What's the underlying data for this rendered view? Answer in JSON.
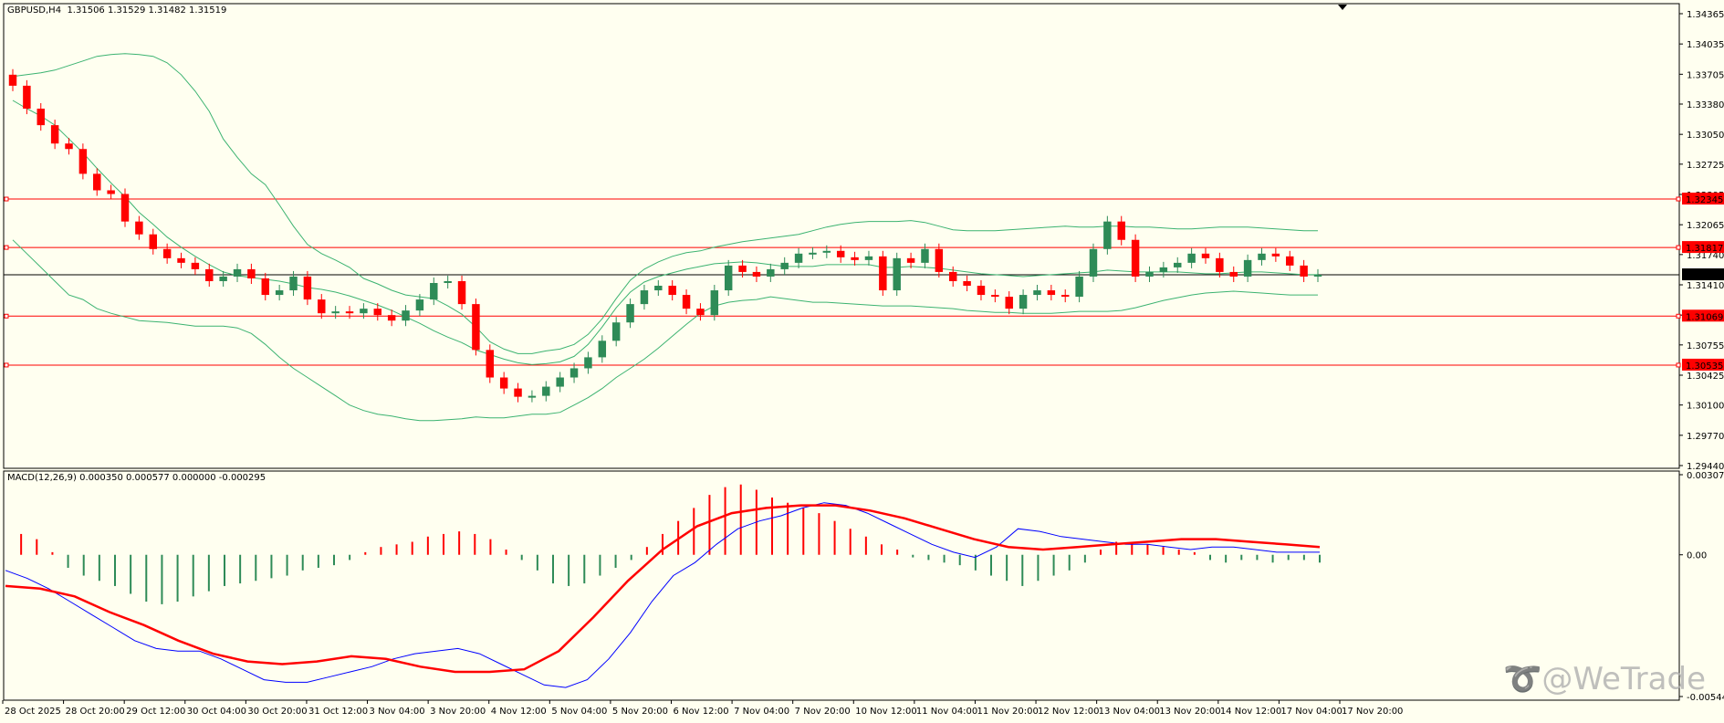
{
  "symbol_line": {
    "symbol": "GBPUSD,H4",
    "ohlc": "1.31506 1.31529 1.31482 1.31519"
  },
  "macd_line": "MACD(12,26,9) 0.000350 0.000577 0.000000 -0.000295",
  "watermark": "@WeTrade",
  "colors": {
    "background": "#fffff0",
    "bull": "#2e8b57",
    "bear": "#ff0000",
    "bands": "#3cb371",
    "level": "#ff0000",
    "macd_line": "#0000ff",
    "signal_line": "#ff0000"
  },
  "chart_data": [
    {
      "type": "candlestick",
      "title": "GBPUSD,H4",
      "ylim": [
        1.2944,
        1.3439
      ],
      "y_ticks": [
        "1.34365",
        "1.34035",
        "1.33705",
        "1.33380",
        "1.33050",
        "1.32725",
        "1.32395",
        "1.32065",
        "1.31740",
        "1.31410",
        "1.31080",
        "1.30755",
        "1.30425",
        "1.30100",
        "1.29770",
        "1.29440"
      ],
      "x_ticks": [
        "28 Oct 2025",
        "28 Oct 20:00",
        "29 Oct 12:00",
        "30 Oct 04:00",
        "30 Oct 20:00",
        "31 Oct 12:00",
        "3 Nov 04:00",
        "3 Nov 20:00",
        "4 Nov 12:00",
        "5 Nov 04:00",
        "5 Nov 20:00",
        "6 Nov 12:00",
        "7 Nov 04:00",
        "7 Nov 20:00",
        "10 Nov 12:00",
        "11 Nov 04:00",
        "11 Nov 20:00",
        "12 Nov 12:00",
        "13 Nov 04:00",
        "13 Nov 20:00",
        "14 Nov 12:00",
        "17 Nov 04:00",
        "17 Nov 20:00"
      ],
      "levels": [
        "1.32345",
        "1.31817",
        "1.31069",
        "1.30535"
      ],
      "current_price": "1.31519",
      "closes": [
        1.3358,
        1.3333,
        1.3315,
        1.3295,
        1.3289,
        1.3262,
        1.3244,
        1.324,
        1.321,
        1.3196,
        1.318,
        1.317,
        1.3165,
        1.3158,
        1.3145,
        1.315,
        1.3158,
        1.3148,
        1.313,
        1.3135,
        1.315,
        1.3125,
        1.311,
        1.3112,
        1.311,
        1.3115,
        1.3108,
        1.3102,
        1.3113,
        1.3125,
        1.3143,
        1.3145,
        1.312,
        1.307,
        1.304,
        1.3028,
        1.3019,
        1.302,
        1.303,
        1.304,
        1.305,
        1.3062,
        1.308,
        1.31,
        1.312,
        1.3135,
        1.314,
        1.313,
        1.3115,
        1.3108,
        1.3135,
        1.3162,
        1.3155,
        1.315,
        1.3158,
        1.3165,
        1.3175,
        1.3176,
        1.3178,
        1.3171,
        1.3168,
        1.3172,
        1.3135,
        1.317,
        1.3165,
        1.318,
        1.3155,
        1.3145,
        1.314,
        1.313,
        1.3128,
        1.3115,
        1.313,
        1.3135,
        1.313,
        1.3128,
        1.315,
        1.318,
        1.321,
        1.319,
        1.315,
        1.3155,
        1.316,
        1.3165,
        1.3175,
        1.317,
        1.3155,
        1.315,
        1.3168,
        1.3175,
        1.3172,
        1.3162,
        1.315,
        1.3152
      ],
      "upper_band": [
        1.3368,
        1.337,
        1.3372,
        1.3375,
        1.338,
        1.3385,
        1.339,
        1.3392,
        1.3393,
        1.3392,
        1.339,
        1.3383,
        1.337,
        1.3352,
        1.333,
        1.33,
        1.328,
        1.3262,
        1.325,
        1.3228,
        1.3205,
        1.3185,
        1.3175,
        1.3168,
        1.316,
        1.3148,
        1.3142,
        1.3135,
        1.313,
        1.3128,
        1.3126,
        1.3118,
        1.3109,
        1.3095,
        1.3079,
        1.3071,
        1.3066,
        1.3066,
        1.3069,
        1.3071,
        1.3076,
        1.3087,
        1.3104,
        1.3126,
        1.3146,
        1.3158,
        1.3166,
        1.3172,
        1.3176,
        1.3178,
        1.3182,
        1.3185,
        1.3188,
        1.319,
        1.3192,
        1.3194,
        1.3196,
        1.32,
        1.3204,
        1.3207,
        1.3209,
        1.321,
        1.321,
        1.321,
        1.3211,
        1.3209,
        1.3205,
        1.3201,
        1.32,
        1.32,
        1.32,
        1.3201,
        1.3202,
        1.3203,
        1.3204,
        1.3205,
        1.3204,
        1.3204,
        1.3205,
        1.3205,
        1.3204,
        1.3204,
        1.3203,
        1.3202,
        1.3202,
        1.3203,
        1.3204,
        1.3204,
        1.3204,
        1.3203,
        1.3202,
        1.3201,
        1.32,
        1.32
      ],
      "middle_band": [
        1.3342,
        1.3333,
        1.3325,
        1.3315,
        1.33,
        1.3285,
        1.3268,
        1.3252,
        1.3237,
        1.322,
        1.3207,
        1.3193,
        1.3182,
        1.3172,
        1.3163,
        1.3155,
        1.3151,
        1.3149,
        1.3147,
        1.3145,
        1.3142,
        1.3138,
        1.3136,
        1.3133,
        1.3129,
        1.3124,
        1.3119,
        1.3113,
        1.3106,
        1.3099,
        1.3091,
        1.3084,
        1.3078,
        1.307,
        1.3065,
        1.306,
        1.3056,
        1.3054,
        1.3055,
        1.3057,
        1.3063,
        1.3076,
        1.3095,
        1.3116,
        1.3133,
        1.3144,
        1.315,
        1.3154,
        1.3158,
        1.3161,
        1.3164,
        1.3165,
        1.3166,
        1.3165,
        1.3163,
        1.3161,
        1.3161,
        1.3161,
        1.3163,
        1.3163,
        1.3163,
        1.3163,
        1.316,
        1.316,
        1.3161,
        1.316,
        1.3159,
        1.3157,
        1.3155,
        1.3153,
        1.3152,
        1.3151,
        1.315,
        1.3151,
        1.3152,
        1.3153,
        1.3154,
        1.3155,
        1.3157,
        1.3156,
        1.3155,
        1.3155,
        1.3155,
        1.3155,
        1.3154,
        1.3153,
        1.3153,
        1.3154,
        1.3155,
        1.3155,
        1.3154,
        1.3153,
        1.3152,
        1.3152
      ],
      "lower_band": [
        1.319,
        1.3175,
        1.316,
        1.3145,
        1.313,
        1.3125,
        1.3115,
        1.311,
        1.3106,
        1.3102,
        1.3101,
        1.31,
        1.3098,
        1.3096,
        1.3096,
        1.3096,
        1.3094,
        1.3088,
        1.3076,
        1.3062,
        1.305,
        1.304,
        1.303,
        1.302,
        1.301,
        1.3004,
        1.3,
        1.2998,
        1.2995,
        1.2993,
        1.2993,
        1.2994,
        1.2995,
        1.2997,
        1.2996,
        1.2996,
        1.2998,
        1.3,
        1.3,
        1.3002,
        1.301,
        1.3018,
        1.3028,
        1.304,
        1.305,
        1.306,
        1.3072,
        1.3085,
        1.3098,
        1.311,
        1.3118,
        1.3122,
        1.3124,
        1.3125,
        1.3128,
        1.3126,
        1.3124,
        1.3122,
        1.3122,
        1.3121,
        1.312,
        1.3119,
        1.3118,
        1.3118,
        1.3118,
        1.3117,
        1.3116,
        1.3115,
        1.3113,
        1.3112,
        1.3111,
        1.3111,
        1.311,
        1.311,
        1.311,
        1.3111,
        1.3112,
        1.3112,
        1.3112,
        1.3113,
        1.3116,
        1.312,
        1.3124,
        1.3127,
        1.313,
        1.3132,
        1.3133,
        1.3134,
        1.3133,
        1.3132,
        1.3131,
        1.313,
        1.313,
        1.313
      ]
    },
    {
      "type": "macd",
      "title": "MACD(12,26,9)",
      "y_ticks": [
        "0.003078",
        "0.00",
        "-0.005447"
      ],
      "ylim": [
        -0.005447,
        0.003078
      ],
      "histogram": [
        -0.0,
        0.0008,
        0.0006,
        0.0001,
        -0.0005,
        -0.0008,
        -0.001,
        -0.0012,
        -0.0015,
        -0.0018,
        -0.0019,
        -0.0018,
        -0.0016,
        -0.0014,
        -0.0012,
        -0.0011,
        -0.001,
        -0.0009,
        -0.0008,
        -0.0006,
        -0.0005,
        -0.0004,
        -0.0002,
        0.0001,
        0.0003,
        0.0004,
        0.0005,
        0.0007,
        0.0008,
        0.0009,
        0.0008,
        0.0006,
        0.0002,
        -0.0002,
        -0.0006,
        -0.0011,
        -0.0012,
        -0.0011,
        -0.0008,
        -0.0005,
        -0.0002,
        0.0003,
        0.0008,
        0.0013,
        0.0018,
        0.0023,
        0.0026,
        0.0027,
        0.0025,
        0.0022,
        0.002,
        0.0018,
        0.0016,
        0.0013,
        0.001,
        0.0007,
        0.0004,
        0.0002,
        -0.0001,
        -0.0002,
        -0.0003,
        -0.0004,
        -0.0006,
        -0.0008,
        -0.001,
        -0.0012,
        -0.001,
        -0.0008,
        -0.0006,
        -0.0003,
        0.0002,
        0.0005,
        0.0005,
        0.0004,
        0.0003,
        0.0002,
        0.0001,
        -0.0002,
        -0.0003,
        -0.0002,
        -0.0002,
        -0.0003,
        -0.0002,
        -0.0002,
        -0.0003
      ],
      "macd": [
        -0.0006,
        -0.0009,
        -0.0013,
        -0.0018,
        -0.0023,
        -0.0028,
        -0.0033,
        -0.0036,
        -0.0037,
        -0.0037,
        -0.004,
        -0.0044,
        -0.0048,
        -0.0049,
        -0.0049,
        -0.0047,
        -0.0045,
        -0.0043,
        -0.004,
        -0.0038,
        -0.0037,
        -0.0036,
        -0.0038,
        -0.0042,
        -0.0046,
        -0.005,
        -0.0051,
        -0.0048,
        -0.004,
        -0.003,
        -0.0018,
        -0.0008,
        -0.0003,
        0.0004,
        0.001,
        0.0013,
        0.0015,
        0.0018,
        0.002,
        0.0019,
        0.0016,
        0.0012,
        0.0008,
        0.0004,
        0.0001,
        -0.0001,
        0.0003,
        0.001,
        0.0009,
        0.0007,
        0.0006,
        0.0005,
        0.0004,
        0.0004,
        0.0003,
        0.0002,
        0.0003,
        0.0003,
        0.0002,
        0.0001,
        0.0001,
        0.0001
      ],
      "signal": [
        -0.0012,
        -0.0013,
        -0.0016,
        -0.0022,
        -0.0027,
        -0.0033,
        -0.0038,
        -0.0041,
        -0.0042,
        -0.0041,
        -0.0039,
        -0.004,
        -0.0043,
        -0.0045,
        -0.0045,
        -0.0044,
        -0.0037,
        -0.0024,
        -0.001,
        0.0002,
        0.0011,
        0.0016,
        0.0018,
        0.0019,
        0.0019,
        0.0017,
        0.0014,
        0.001,
        0.0006,
        0.0003,
        0.0002,
        0.0003,
        0.0004,
        0.0005,
        0.0006,
        0.0006,
        0.0005,
        0.0004,
        0.0003
      ]
    }
  ]
}
